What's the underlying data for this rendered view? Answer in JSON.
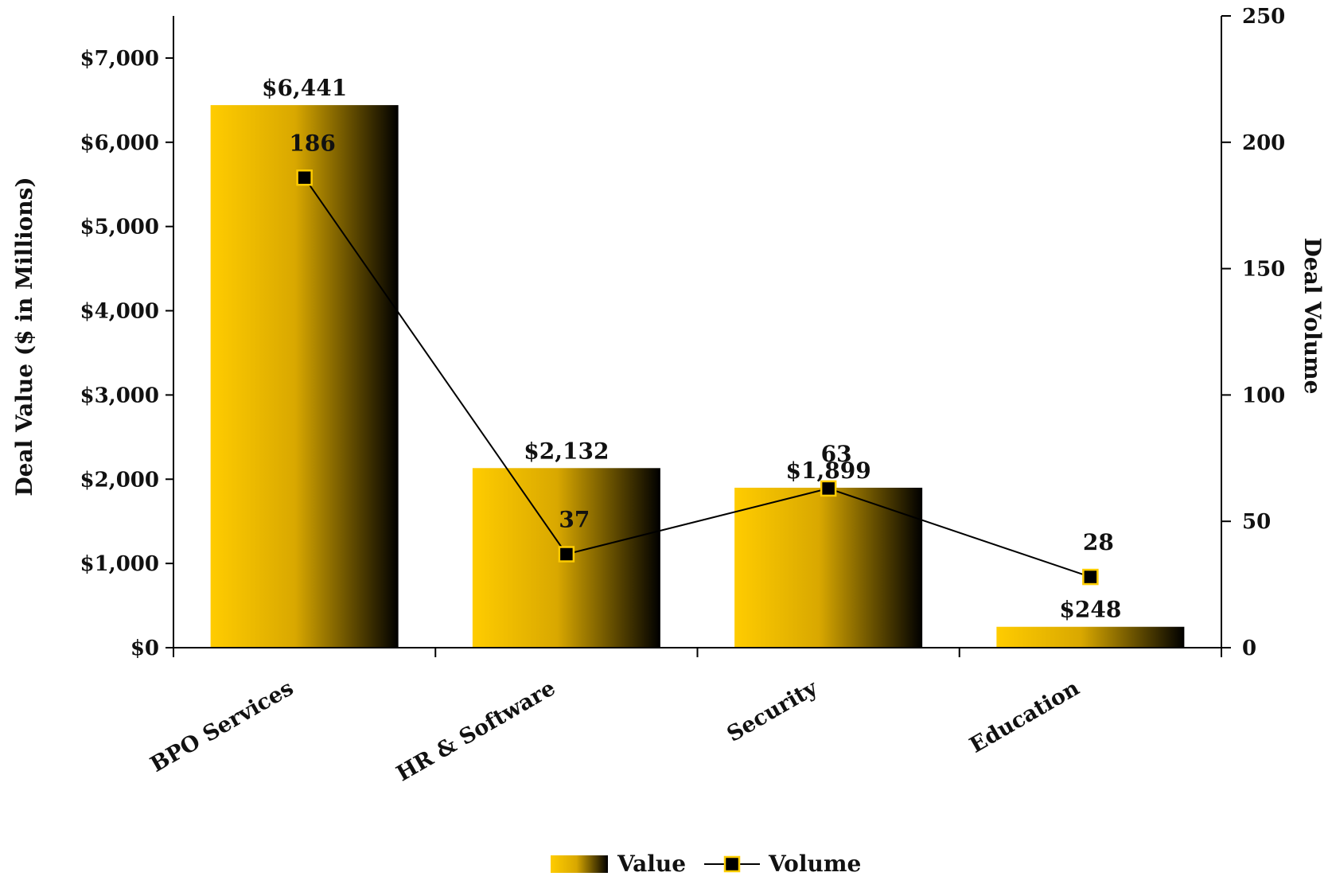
{
  "chart_data": {
    "type": "bar",
    "categories": [
      "BPO Services",
      "HR & Software",
      "Security",
      "Education"
    ],
    "series": [
      {
        "name": "Value",
        "kind": "bar",
        "axis": "left",
        "values": [
          6441,
          2132,
          1899,
          248
        ],
        "labels": [
          "$6,441",
          "$2,132",
          "$1,899",
          "$248"
        ]
      },
      {
        "name": "Volume",
        "kind": "line",
        "axis": "right",
        "values": [
          186,
          37,
          63,
          28
        ],
        "labels": [
          "186",
          "37",
          "63",
          "28"
        ]
      }
    ],
    "ylabel": "Deal Value ($ in Millions)",
    "y2label": "Deal Volume",
    "ylim": [
      0,
      7500
    ],
    "y2lim": [
      0,
      250
    ],
    "yticks": [
      0,
      1000,
      2000,
      3000,
      4000,
      5000,
      6000,
      7000
    ],
    "ytick_labels": [
      "$0",
      "$1,000",
      "$2,000",
      "$3,000",
      "$4,000",
      "$5,000",
      "$6,000",
      "$7,000"
    ],
    "y2ticks": [
      0,
      50,
      100,
      150,
      200,
      250
    ],
    "y2tick_labels": [
      "0",
      "50",
      "100",
      "150",
      "200",
      "250"
    ],
    "grid": false,
    "legend_position": "bottom",
    "colors": {
      "bar_gradient_start": "#ffcc00",
      "bar_gradient_mid": "#d9a800",
      "bar_gradient_end": "#000000",
      "line": "#000000",
      "marker_fill": "#000000",
      "marker_edge": "#ffcc00",
      "axis": "#000000"
    }
  }
}
